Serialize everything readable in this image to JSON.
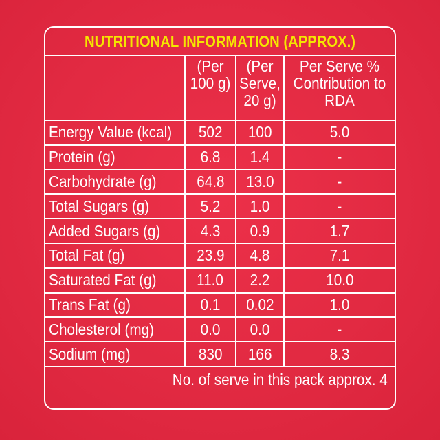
{
  "title": "NUTRITIONAL INFORMATION (APPROX.)",
  "columns": {
    "per_100g": "(Per 100 g)",
    "per_serve": "(Per Serve, 20 g)",
    "rda": "Per Serve % Contribution to RDA"
  },
  "rows": [
    {
      "name": "Energy Value (kcal)",
      "per_100g": "502",
      "per_serve": "100",
      "rda": "5.0"
    },
    {
      "name": "Protein (g)",
      "per_100g": "6.8",
      "per_serve": "1.4",
      "rda": "-"
    },
    {
      "name": "Carbohydrate (g)",
      "per_100g": "64.8",
      "per_serve": "13.0",
      "rda": "-"
    },
    {
      "name": "Total Sugars (g)",
      "per_100g": "5.2",
      "per_serve": "1.0",
      "rda": "-"
    },
    {
      "name": "Added Sugars (g)",
      "per_100g": "4.3",
      "per_serve": "0.9",
      "rda": "1.7"
    },
    {
      "name": "Total Fat (g)",
      "per_100g": "23.9",
      "per_serve": "4.8",
      "rda": "7.1"
    },
    {
      "name": "Saturated Fat (g)",
      "per_100g": "11.0",
      "per_serve": "2.2",
      "rda": "10.0"
    },
    {
      "name": "Trans Fat (g)",
      "per_100g": "0.1",
      "per_serve": "0.02",
      "rda": "1.0"
    },
    {
      "name": "Cholesterol (mg)",
      "per_100g": "0.0",
      "per_serve": "0.0",
      "rda": "-"
    },
    {
      "name": "Sodium (mg)",
      "per_100g": "830",
      "per_serve": "166",
      "rda": "8.3"
    }
  ],
  "footer": "No. of serve in this pack approx. 4",
  "colors": {
    "background": "#e8243c",
    "title": "#f4e600",
    "text": "#ffffff"
  }
}
